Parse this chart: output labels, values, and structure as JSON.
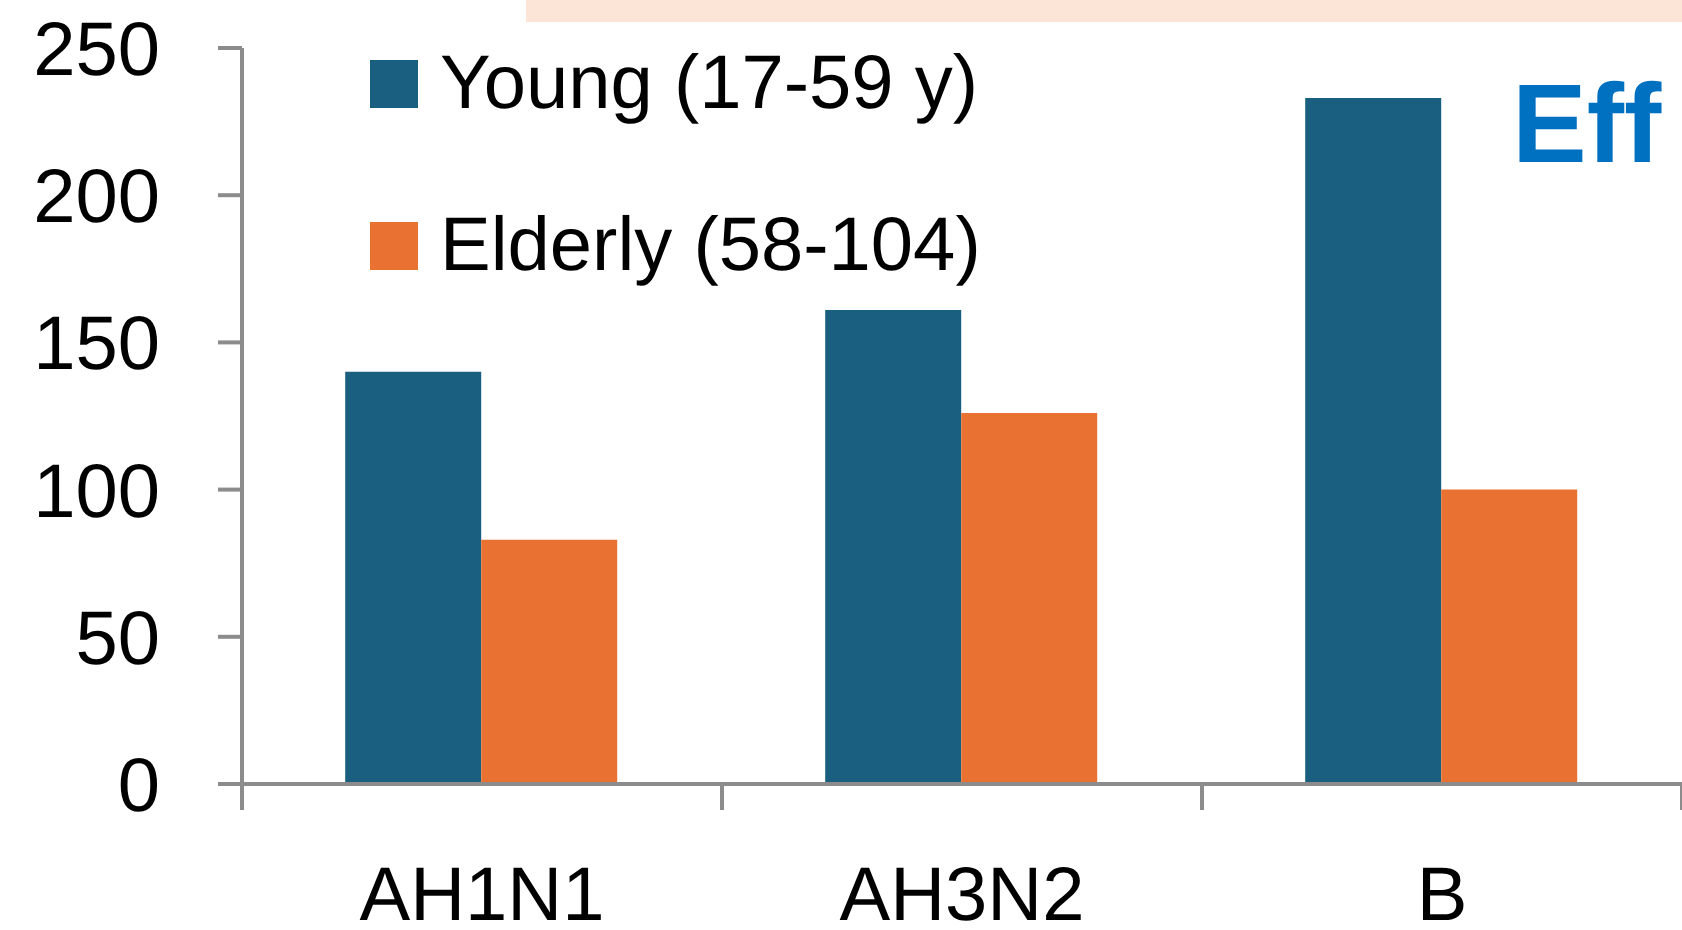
{
  "chart_data": {
    "type": "bar",
    "categories": [
      "AH1N1",
      "AH3N2",
      "B"
    ],
    "series": [
      {
        "name": "Young (17-59 y)",
        "color": "#1a5f80",
        "values": [
          140,
          161,
          233
        ]
      },
      {
        "name": "Elderly (58-104)",
        "color": "#e97132",
        "values": [
          83,
          126,
          100
        ]
      }
    ],
    "ylim": [
      0,
      250
    ],
    "yticks": [
      0,
      50,
      100,
      150,
      200,
      250
    ],
    "legend": "top left",
    "annotations": [
      "Eff"
    ]
  }
}
